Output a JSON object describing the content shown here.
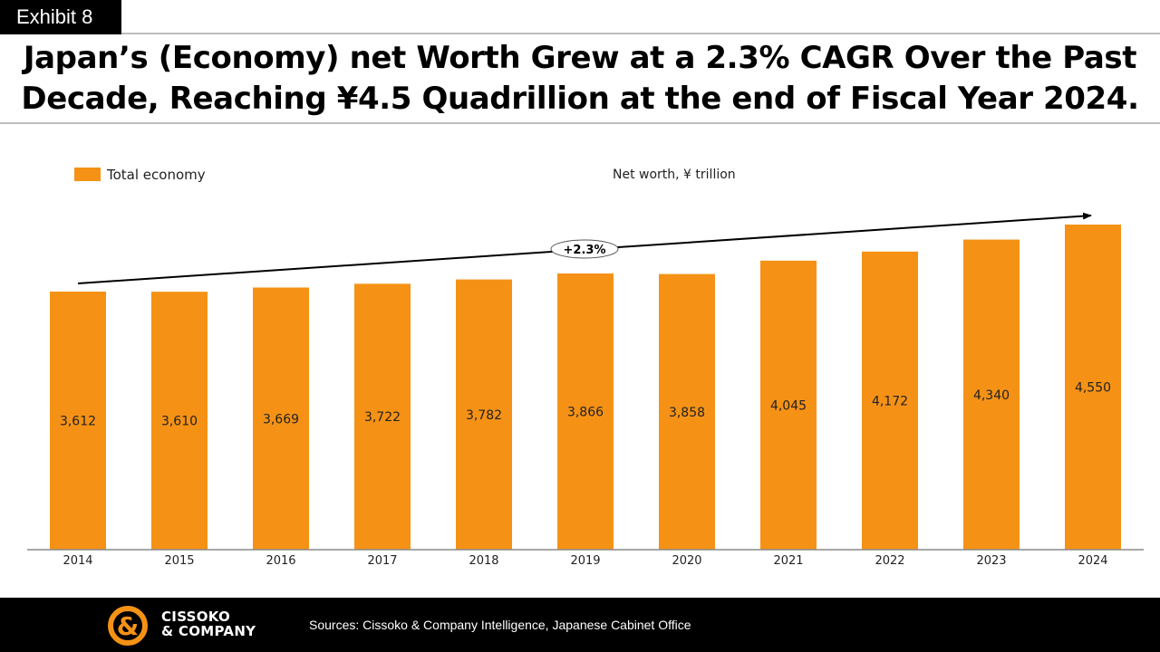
{
  "exhibit_label": "Exhibit 8",
  "title_line1": "Japan’s (Economy) net Worth Grew at a 2.3% CAGR Over the Past",
  "title_line2": "Decade, Reaching ¥4.5 Quadrillion at the end of Fiscal Year 2024.",
  "chart_data": {
    "type": "bar",
    "title": "",
    "unit_label": "Net worth, ¥ trillion",
    "categories": [
      "2014",
      "2015",
      "2016",
      "2017",
      "2018",
      "2019",
      "2020",
      "2021",
      "2022",
      "2023",
      "2024"
    ],
    "series": [
      {
        "name": "Total economy",
        "color": "#F59216",
        "values": [
          3612,
          3610,
          3669,
          3722,
          3782,
          3866,
          3858,
          4045,
          4172,
          4340,
          4550
        ]
      }
    ],
    "data_labels": [
      "3,612",
      "3,610",
      "3,669",
      "3,722",
      "3,782",
      "3,866",
      "3,858",
      "4,045",
      "4,172",
      "4,340",
      "4,550"
    ],
    "annotation": "+2.3%",
    "legend_position": "top-left",
    "grid": false
  },
  "footer": {
    "logo_line1": "CISSOKO",
    "logo_line2": "& COMPANY",
    "sources": "Sources: Cissoko & Company Intelligence, Japanese Cabinet Office"
  },
  "colors": {
    "bar": "#F59216",
    "logo_accent": "#F59216",
    "footer_bg": "#000000"
  }
}
